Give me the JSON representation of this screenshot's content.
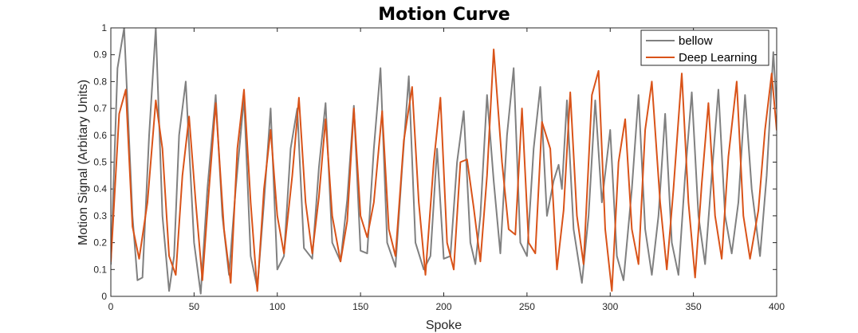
{
  "chart_data": {
    "type": "line",
    "title": "Motion Curve",
    "xlabel": "Spoke",
    "ylabel": "Motion Signal (Arbitary Units)",
    "xlim": [
      0,
      400
    ],
    "ylim": [
      0,
      1
    ],
    "xticks": [
      0,
      50,
      100,
      150,
      200,
      250,
      300,
      350,
      400
    ],
    "yticks": [
      0,
      0.1,
      0.2,
      0.3,
      0.4,
      0.5,
      0.6,
      0.7,
      0.8,
      0.9,
      1
    ],
    "xtick_labels": [
      "0",
      "50",
      "100",
      "150",
      "200",
      "250",
      "300",
      "350",
      "400"
    ],
    "ytick_labels": [
      "0",
      "0.1",
      "0.2",
      "0.3",
      "0.4",
      "0.5",
      "0.6",
      "0.7",
      "0.8",
      "0.9",
      "1"
    ],
    "grid": false,
    "legend_position": "top-right",
    "series": [
      {
        "name": "bellow",
        "color": "#808080",
        "x": [
          0,
          4,
          8,
          13,
          16,
          19,
          23,
          27,
          31,
          35,
          38,
          41,
          45,
          50,
          54,
          58,
          63,
          67,
          71,
          75,
          80,
          84,
          88,
          92,
          96,
          100,
          104,
          108,
          112,
          116,
          121,
          125,
          129,
          133,
          138,
          142,
          146,
          150,
          154,
          158,
          162,
          166,
          171,
          175,
          179,
          183,
          188,
          192,
          196,
          200,
          204,
          208,
          212,
          216,
          219,
          222,
          226,
          230,
          234,
          238,
          242,
          246,
          250,
          254,
          258,
          262,
          266,
          269,
          271,
          274,
          278,
          283,
          287,
          291,
          295,
          300,
          304,
          308,
          313,
          317,
          321,
          325,
          329,
          333,
          337,
          341,
          345,
          349,
          353,
          357,
          361,
          365,
          369,
          373,
          377,
          381,
          385,
          390,
          394,
          398,
          400
        ],
        "y": [
          0.12,
          0.85,
          1.0,
          0.3,
          0.06,
          0.07,
          0.6,
          1.0,
          0.3,
          0.02,
          0.15,
          0.6,
          0.8,
          0.2,
          0.01,
          0.4,
          0.75,
          0.3,
          0.08,
          0.4,
          0.74,
          0.15,
          0.03,
          0.35,
          0.7,
          0.1,
          0.15,
          0.55,
          0.7,
          0.18,
          0.14,
          0.48,
          0.72,
          0.2,
          0.13,
          0.36,
          0.71,
          0.17,
          0.16,
          0.55,
          0.85,
          0.2,
          0.11,
          0.48,
          0.82,
          0.2,
          0.1,
          0.15,
          0.55,
          0.14,
          0.15,
          0.5,
          0.69,
          0.2,
          0.12,
          0.3,
          0.75,
          0.43,
          0.16,
          0.6,
          0.85,
          0.2,
          0.15,
          0.55,
          0.78,
          0.3,
          0.43,
          0.49,
          0.4,
          0.73,
          0.25,
          0.05,
          0.3,
          0.73,
          0.35,
          0.62,
          0.15,
          0.06,
          0.4,
          0.75,
          0.25,
          0.08,
          0.3,
          0.68,
          0.2,
          0.08,
          0.45,
          0.76,
          0.3,
          0.12,
          0.45,
          0.77,
          0.3,
          0.16,
          0.35,
          0.75,
          0.4,
          0.15,
          0.45,
          0.91,
          0.7
        ]
      },
      {
        "name": "Deep Learning",
        "color": "#D95319",
        "x": [
          0,
          5,
          9,
          13,
          17,
          22,
          27,
          31,
          35,
          39,
          43,
          47,
          51,
          55,
          59,
          63,
          68,
          72,
          76,
          80,
          84,
          88,
          92,
          96,
          100,
          104,
          109,
          113,
          117,
          121,
          125,
          129,
          133,
          138,
          142,
          146,
          150,
          154,
          158,
          163,
          167,
          171,
          176,
          181,
          185,
          189,
          194,
          198,
          202,
          206,
          210,
          214,
          218,
          222,
          226,
          230,
          235,
          239,
          243,
          247,
          251,
          255,
          259,
          264,
          268,
          272,
          276,
          280,
          284,
          289,
          293,
          297,
          301,
          305,
          309,
          313,
          317,
          321,
          325,
          330,
          334,
          338,
          343,
          347,
          351,
          355,
          359,
          363,
          367,
          371,
          376,
          380,
          384,
          389,
          393,
          397,
          400
        ],
        "y": [
          0.13,
          0.68,
          0.77,
          0.26,
          0.14,
          0.35,
          0.73,
          0.55,
          0.15,
          0.08,
          0.45,
          0.67,
          0.35,
          0.06,
          0.4,
          0.72,
          0.25,
          0.05,
          0.55,
          0.77,
          0.35,
          0.02,
          0.4,
          0.62,
          0.3,
          0.16,
          0.45,
          0.74,
          0.35,
          0.16,
          0.37,
          0.66,
          0.3,
          0.13,
          0.28,
          0.7,
          0.3,
          0.22,
          0.35,
          0.69,
          0.25,
          0.15,
          0.58,
          0.78,
          0.35,
          0.08,
          0.5,
          0.74,
          0.2,
          0.1,
          0.5,
          0.51,
          0.33,
          0.13,
          0.45,
          0.92,
          0.5,
          0.25,
          0.23,
          0.7,
          0.2,
          0.16,
          0.65,
          0.55,
          0.1,
          0.32,
          0.76,
          0.3,
          0.12,
          0.75,
          0.84,
          0.25,
          0.02,
          0.5,
          0.66,
          0.25,
          0.12,
          0.62,
          0.8,
          0.35,
          0.1,
          0.4,
          0.83,
          0.35,
          0.07,
          0.42,
          0.72,
          0.3,
          0.14,
          0.52,
          0.8,
          0.3,
          0.14,
          0.32,
          0.62,
          0.83,
          0.62
        ]
      }
    ]
  }
}
